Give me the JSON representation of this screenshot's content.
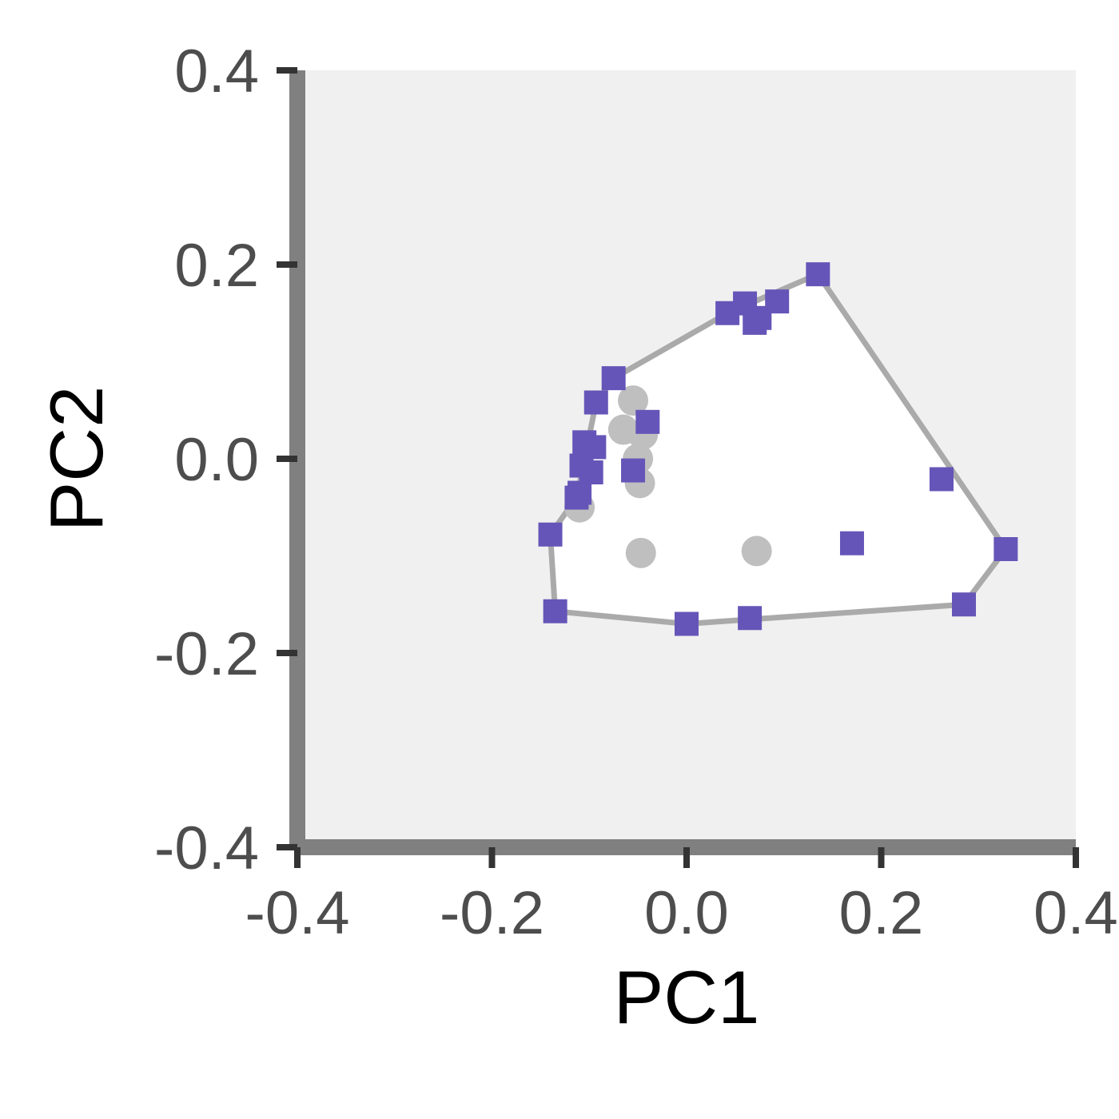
{
  "chart_data": {
    "type": "scatter",
    "title": "",
    "xlabel": "PC1",
    "ylabel": "PC2",
    "xlim": [
      -0.4,
      0.4
    ],
    "ylim": [
      -0.4,
      0.4
    ],
    "xticks": [
      "-0.4",
      "-0.2",
      "0.0",
      "0.2",
      "0.4"
    ],
    "yticks": [
      "-0.4",
      "-0.2",
      "0.0",
      "0.2",
      "0.4"
    ],
    "grid": false,
    "legend": "none",
    "series": [
      {
        "marker": "circle",
        "color": "#bfbfbf",
        "points": [
          {
            "x": -0.055,
            "y": 0.06
          },
          {
            "x": -0.065,
            "y": 0.03
          },
          {
            "x": -0.045,
            "y": 0.025
          },
          {
            "x": -0.05,
            "y": 0.0
          },
          {
            "x": -0.048,
            "y": -0.025
          },
          {
            "x": -0.11,
            "y": -0.05
          },
          {
            "x": -0.047,
            "y": -0.097
          },
          {
            "x": 0.072,
            "y": -0.095
          }
        ]
      },
      {
        "marker": "square",
        "color": "#6655b8",
        "points": [
          {
            "x": 0.135,
            "y": 0.19
          },
          {
            "x": 0.093,
            "y": 0.162
          },
          {
            "x": 0.06,
            "y": 0.16
          },
          {
            "x": 0.042,
            "y": 0.15
          },
          {
            "x": 0.075,
            "y": 0.145
          },
          {
            "x": 0.07,
            "y": 0.14
          },
          {
            "x": -0.075,
            "y": 0.083
          },
          {
            "x": -0.093,
            "y": 0.058
          },
          {
            "x": -0.04,
            "y": 0.038
          },
          {
            "x": -0.105,
            "y": 0.017
          },
          {
            "x": -0.095,
            "y": 0.012
          },
          {
            "x": -0.108,
            "y": -0.007
          },
          {
            "x": -0.098,
            "y": -0.014
          },
          {
            "x": -0.055,
            "y": -0.012
          },
          {
            "x": -0.11,
            "y": -0.035
          },
          {
            "x": -0.113,
            "y": -0.04
          },
          {
            "x": -0.14,
            "y": -0.078
          },
          {
            "x": -0.135,
            "y": -0.157
          },
          {
            "x": 0.0,
            "y": -0.17
          },
          {
            "x": 0.065,
            "y": -0.164
          },
          {
            "x": 0.262,
            "y": -0.021
          },
          {
            "x": 0.17,
            "y": -0.087
          },
          {
            "x": 0.328,
            "y": -0.093
          },
          {
            "x": 0.285,
            "y": -0.15
          }
        ]
      }
    ],
    "hull": {
      "color": "#aaaaaa",
      "points": [
        {
          "x": 0.135,
          "y": 0.19
        },
        {
          "x": 0.328,
          "y": -0.093
        },
        {
          "x": 0.285,
          "y": -0.15
        },
        {
          "x": 0.0,
          "y": -0.17
        },
        {
          "x": -0.135,
          "y": -0.157
        },
        {
          "x": -0.14,
          "y": -0.078
        },
        {
          "x": -0.113,
          "y": -0.04
        },
        {
          "x": -0.093,
          "y": 0.058
        },
        {
          "x": -0.075,
          "y": 0.083
        },
        {
          "x": 0.042,
          "y": 0.15
        }
      ]
    },
    "colors": {
      "panel_background": "#f0f0f0",
      "hull_fill": "#ffffff",
      "axis_line": "#808080",
      "tick_mark": "#333333"
    }
  }
}
